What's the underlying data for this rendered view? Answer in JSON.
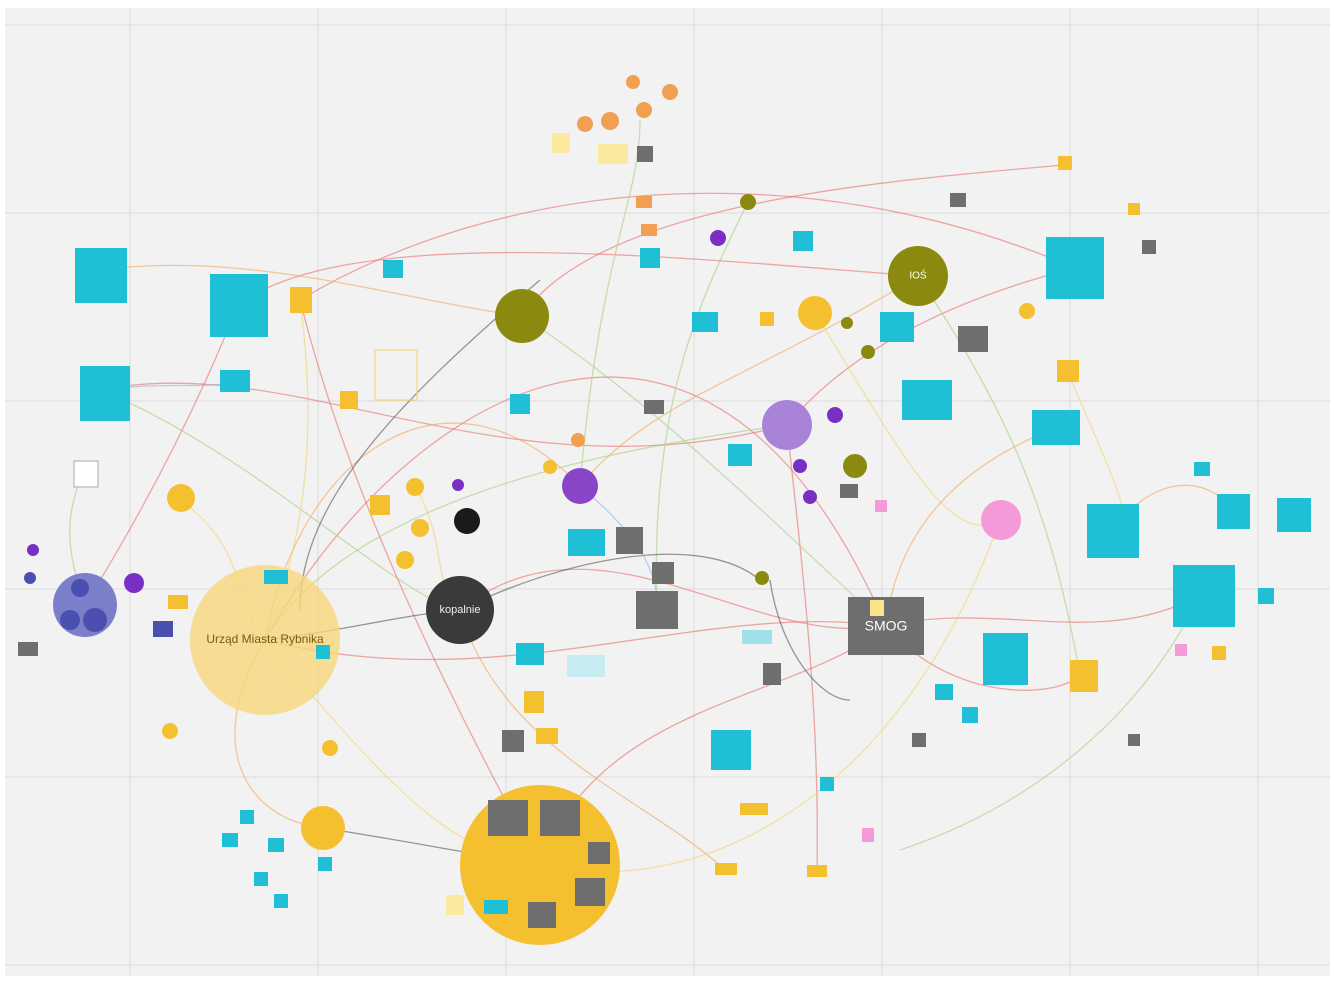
{
  "nodes": [
    {
      "label": "Urząd Miasta Rybnika"
    },
    {
      "label": "kopalnie"
    },
    {
      "label": "SMOG"
    },
    {
      "label": "IOŚ"
    }
  ]
}
